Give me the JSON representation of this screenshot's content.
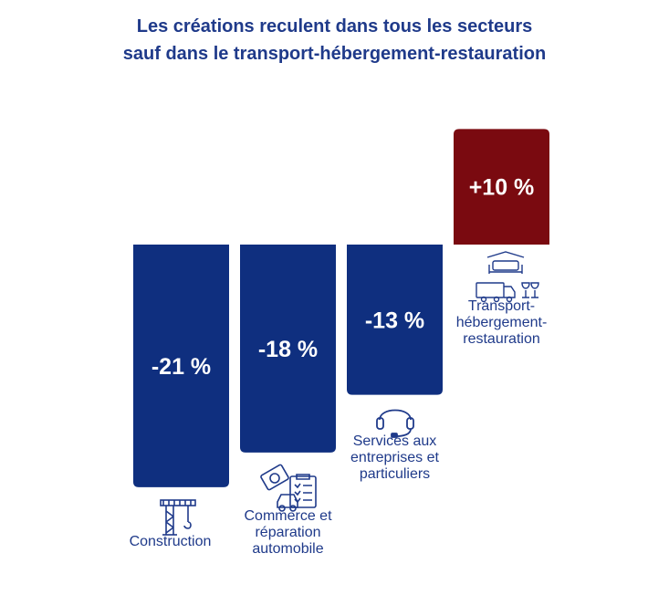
{
  "title_lines": [
    "Les créations reculent dans tous les secteurs",
    "sauf dans le transport-hébergement-restauration"
  ],
  "colors": {
    "negative": "#0f2f7f",
    "positive": "#7a0a10",
    "text": "#1f3a8a",
    "bar_label": "#ffffff"
  },
  "chart_data": {
    "type": "bar",
    "categories": [
      "Construction",
      "Commerce et réparation automobile",
      "Services aux entreprises et particuliers",
      "Transport-hébergement-restauration"
    ],
    "category_label_lines": [
      [
        "Construction"
      ],
      [
        "Commerce et",
        "réparation",
        "automobile"
      ],
      [
        "Services aux",
        "entreprises et",
        "particuliers"
      ],
      [
        "Transport-",
        "hébergement-",
        "restauration"
      ]
    ],
    "values": [
      -21,
      -18,
      -13,
      10
    ],
    "value_labels": [
      "-21 %",
      "-18 %",
      "-13 %",
      "+10 %"
    ],
    "icons": [
      "crane-icon",
      "car-checklist-icon",
      "headset-icon",
      "bed-truck-glasses-icon"
    ],
    "unit": "%",
    "title": "Les créations reculent dans tous les secteurs sauf dans le transport-hébergement-restauration",
    "xlabel": "",
    "ylabel": "",
    "ylim": [
      -21,
      10
    ],
    "grid": false,
    "legend": "none"
  }
}
